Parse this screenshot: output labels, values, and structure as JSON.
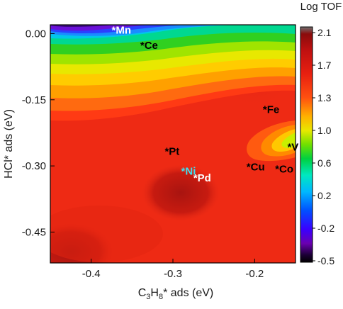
{
  "chart_data": {
    "type": "heatmap",
    "title": "",
    "xlabel": {
      "base": "C",
      "sub1": "3",
      "mid": "H",
      "sub2": "8",
      "tail": "* ads (eV)"
    },
    "ylabel": "HCl* ads (eV)",
    "xlim": [
      -0.45,
      -0.15
    ],
    "ylim": [
      -0.52,
      0.02
    ],
    "x_ticks": [
      -0.4,
      -0.3,
      -0.2
    ],
    "x_tick_labels": [
      "-0.4",
      "-0.3",
      "-0.2"
    ],
    "y_ticks": [
      0.0,
      -0.15,
      -0.3,
      -0.45
    ],
    "y_tick_labels": [
      "0.00",
      "-0.15",
      "-0.30",
      "-0.45"
    ],
    "colorbar": {
      "title": "Log TOF",
      "range": [
        -0.5,
        2.1
      ],
      "tick_values": [
        2.1,
        1.7,
        1.3,
        1.0,
        0.6,
        0.2,
        -0.2,
        -0.5
      ],
      "tick_labels": [
        "2.1",
        "1.7",
        "1.3",
        "1.0",
        "0.6",
        "0.2",
        "-0.2",
        "-0.5"
      ]
    },
    "annotations": [
      {
        "label": "*Mn",
        "x": -0.375,
        "y": 0.0,
        "color": "#ffffff"
      },
      {
        "label": "*Ce",
        "x": -0.34,
        "y": -0.035,
        "color": "#000000"
      },
      {
        "label": "*Fe",
        "x": -0.19,
        "y": -0.18,
        "color": "#000000"
      },
      {
        "label": "*V",
        "x": -0.16,
        "y": -0.265,
        "color": "#000000"
      },
      {
        "label": "*Pt",
        "x": -0.31,
        "y": -0.275,
        "color": "#000000"
      },
      {
        "label": "*Cu",
        "x": -0.21,
        "y": -0.31,
        "color": "#000000"
      },
      {
        "label": "*Co",
        "x": -0.175,
        "y": -0.315,
        "color": "#000000"
      },
      {
        "label": "*Ni",
        "x": -0.29,
        "y": -0.32,
        "color": "#40e0f0"
      },
      {
        "label": "*Pd",
        "x": -0.275,
        "y": -0.335,
        "color": "#ffffff"
      }
    ]
  }
}
